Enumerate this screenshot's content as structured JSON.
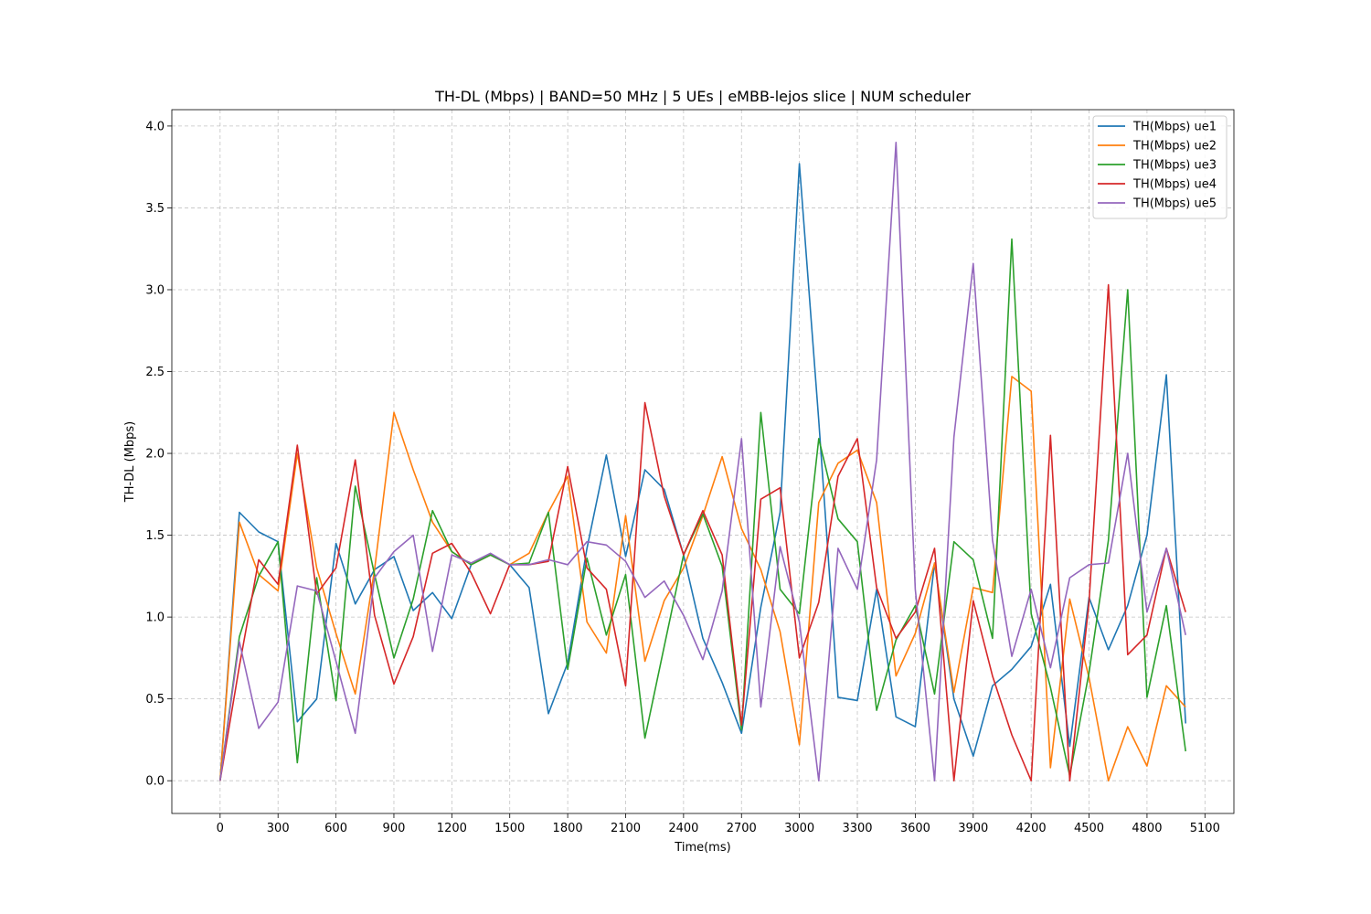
{
  "chart_data": {
    "type": "line",
    "title": "TH-DL (Mbps) | BAND=50 MHz | 5 UEs | eMBB-lejos slice | NUM scheduler",
    "xlabel": "Time(ms)",
    "ylabel": "TH-DL (Mbps)",
    "xlim": [
      -250,
      5250
    ],
    "ylim": [
      -0.2,
      4.1
    ],
    "xticks": [
      0,
      300,
      600,
      900,
      1200,
      1500,
      1800,
      2100,
      2400,
      2700,
      3000,
      3300,
      3600,
      3900,
      4200,
      4500,
      4800,
      5100
    ],
    "xtick_labels": [
      "0",
      "300",
      "600",
      "900",
      "1200",
      "1500",
      "1800",
      "2100",
      "2400",
      "2700",
      "3000",
      "3300",
      "3600",
      "3900",
      "4200",
      "4500",
      "4800",
      "5100"
    ],
    "yticks": [
      0.0,
      0.5,
      1.0,
      1.5,
      2.0,
      2.5,
      3.0,
      3.5,
      4.0
    ],
    "ytick_labels": [
      "0.0",
      "0.5",
      "1.0",
      "1.5",
      "2.0",
      "2.5",
      "3.0",
      "3.5",
      "4.0"
    ],
    "grid": true,
    "legend_position": "top-right",
    "x": [
      0,
      100,
      200,
      300,
      400,
      500,
      600,
      700,
      800,
      900,
      1000,
      1100,
      1200,
      1300,
      1400,
      1500,
      1600,
      1700,
      1800,
      1900,
      2000,
      2100,
      2200,
      2300,
      2400,
      2500,
      2600,
      2700,
      2800,
      2900,
      3000,
      3100,
      3200,
      3300,
      3400,
      3500,
      3600,
      3700,
      3800,
      3900,
      4000,
      4100,
      4200,
      4300,
      4400,
      4500,
      4600,
      4700,
      4800,
      4900,
      5000
    ],
    "series": [
      {
        "name": "TH(Mbps) ue1",
        "color": "#1f77b4",
        "values": [
          0.0,
          1.64,
          1.52,
          1.46,
          0.36,
          0.5,
          1.45,
          1.08,
          1.29,
          1.37,
          1.04,
          1.15,
          0.99,
          1.32,
          1.38,
          1.32,
          1.18,
          0.41,
          0.72,
          1.42,
          1.99,
          1.37,
          1.9,
          1.78,
          1.38,
          0.87,
          0.6,
          0.29,
          1.06,
          1.64,
          3.77,
          2.2,
          0.51,
          0.49,
          1.17,
          0.39,
          0.33,
          1.33,
          0.5,
          0.15,
          0.58,
          0.68,
          0.82,
          1.2,
          0.21,
          1.12,
          0.8,
          1.07,
          1.5,
          2.48,
          0.35
        ]
      },
      {
        "name": "TH(Mbps) ue2",
        "color": "#ff7f0e",
        "values": [
          0.0,
          1.58,
          1.26,
          1.16,
          2.0,
          1.3,
          0.9,
          0.53,
          1.29,
          2.25,
          1.9,
          1.58,
          1.4,
          1.32,
          1.38,
          1.32,
          1.39,
          1.64,
          1.86,
          0.97,
          0.78,
          1.62,
          0.73,
          1.1,
          1.3,
          1.62,
          1.98,
          1.54,
          1.29,
          0.91,
          0.22,
          1.7,
          1.94,
          2.02,
          1.7,
          0.64,
          0.9,
          1.33,
          0.54,
          1.18,
          1.15,
          2.47,
          2.38,
          0.08,
          1.11,
          0.63,
          0.0,
          0.33,
          0.09,
          0.58,
          0.45
        ]
      },
      {
        "name": "TH(Mbps) ue3",
        "color": "#2ca02c",
        "values": [
          0.0,
          0.88,
          1.25,
          1.46,
          0.11,
          1.24,
          0.49,
          1.8,
          1.26,
          0.75,
          1.11,
          1.65,
          1.4,
          1.32,
          1.38,
          1.32,
          1.33,
          1.64,
          0.68,
          1.36,
          0.89,
          1.26,
          0.26,
          0.82,
          1.38,
          1.63,
          1.31,
          0.31,
          2.25,
          1.17,
          1.02,
          2.09,
          1.6,
          1.46,
          0.43,
          0.86,
          1.07,
          0.53,
          1.46,
          1.35,
          0.87,
          3.31,
          1.02,
          0.57,
          0.03,
          0.66,
          1.47,
          3.0,
          0.51,
          1.07,
          0.18
        ]
      },
      {
        "name": "TH(Mbps) ue4",
        "color": "#d62728",
        "values": [
          0.0,
          0.7,
          1.35,
          1.2,
          2.05,
          1.14,
          1.3,
          1.96,
          1.01,
          0.59,
          0.88,
          1.39,
          1.45,
          1.27,
          1.02,
          1.32,
          1.32,
          1.34,
          1.92,
          1.3,
          1.17,
          0.58,
          2.31,
          1.74,
          1.38,
          1.65,
          1.38,
          0.34,
          1.72,
          1.79,
          0.75,
          1.09,
          1.86,
          2.09,
          1.18,
          0.87,
          1.03,
          1.42,
          0.0,
          1.1,
          0.64,
          0.28,
          0.0,
          2.11,
          0.0,
          1.09,
          3.03,
          0.77,
          0.89,
          1.42,
          1.03
        ]
      },
      {
        "name": "TH(Mbps) ue5",
        "color": "#9467bd",
        "values": [
          0.0,
          0.85,
          0.32,
          0.48,
          1.19,
          1.16,
          0.73,
          0.29,
          1.24,
          1.4,
          1.5,
          0.79,
          1.38,
          1.33,
          1.39,
          1.32,
          1.32,
          1.35,
          1.32,
          1.46,
          1.44,
          1.34,
          1.12,
          1.22,
          1.01,
          0.74,
          1.16,
          2.09,
          0.45,
          1.43,
          0.97,
          0.0,
          1.42,
          1.17,
          1.96,
          3.9,
          1.17,
          0.0,
          2.1,
          3.16,
          1.47,
          0.76,
          1.17,
          0.69,
          1.24,
          1.32,
          1.33,
          2.0,
          1.03,
          1.42,
          0.89
        ]
      }
    ]
  }
}
